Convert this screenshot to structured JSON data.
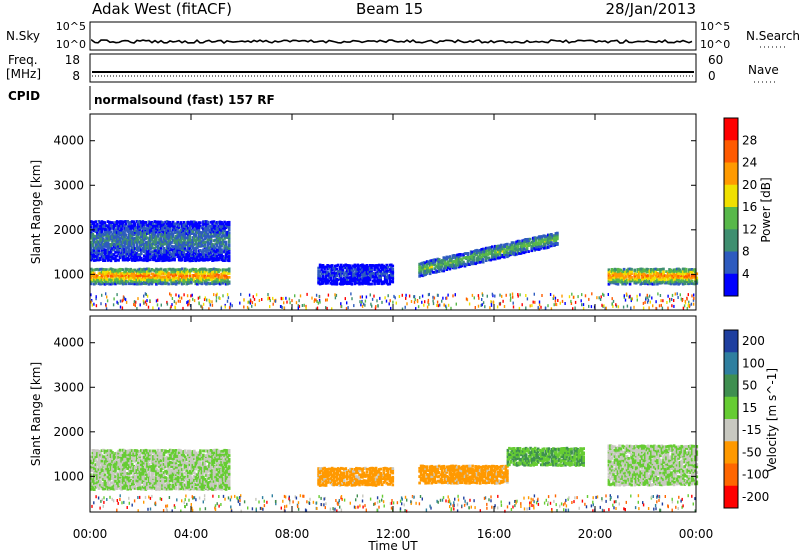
{
  "header": {
    "station": "Adak West (fitACF)",
    "beam": "Beam 15",
    "date": "28/Jan/2013"
  },
  "aux_panel": {
    "left_label": "N.Sky",
    "right_label": "N.Search",
    "left_ticks": [
      "10^5",
      "10^0"
    ],
    "right_ticks": [
      "10^5",
      "10^0"
    ]
  },
  "freq_panel": {
    "left_label_1": "Freq.",
    "left_label_2": "[MHz]",
    "right_label": "Nave",
    "left_ticks": [
      "18",
      "8"
    ],
    "right_ticks": [
      "60",
      "0"
    ]
  },
  "cpid": {
    "label": "CPID",
    "value": "normalsound (fast) 157 RF"
  },
  "colors": {
    "power_scale": [
      "#0000ff",
      "#2e5bbf",
      "#3f8f70",
      "#58b84a",
      "#f0e000",
      "#ff9a00",
      "#ff5a00",
      "#ff0000"
    ],
    "velocity_scale": [
      "#1f3f9f",
      "#2f7f9f",
      "#3f8f50",
      "#66cc33",
      "#c8c8c0",
      "#ff9900",
      "#ff6600",
      "#ff0000"
    ]
  },
  "chart_data": [
    {
      "type": "heatmap",
      "name": "power",
      "ylabel": "Slant Range [km]",
      "yticks": [
        1000,
        2000,
        3000,
        4000
      ],
      "ylim": [
        200,
        4600
      ],
      "colorbar_label": "Power [dB]",
      "colorbar_ticks": [
        4,
        8,
        12,
        16,
        20,
        24,
        28
      ],
      "clim": [
        0,
        32
      ],
      "xlim_hours": [
        0,
        24
      ],
      "features": [
        {
          "label": "00:00-05:30 band",
          "t_start": 0.0,
          "t_end": 5.5,
          "range_center_km": 1000,
          "range_width_km": 350,
          "peak_dB": 28
        },
        {
          "label": "00:00-05:30 upper scatter",
          "t_start": 0.0,
          "t_end": 5.5,
          "range_center_km": 1800,
          "range_width_km": 900,
          "peak_dB": 12
        },
        {
          "label": "09:00-12:00 patch",
          "t_start": 9.0,
          "t_end": 12.0,
          "range_center_km": 1050,
          "range_width_km": 450,
          "peak_dB": 8
        },
        {
          "label": "13:00-18:30 rising band",
          "t_start": 13.0,
          "t_end": 18.5,
          "range_center_km": 1150,
          "range_width_km": 300,
          "peak_dB": 18
        },
        {
          "label": "20:30-24:00 band",
          "t_start": 20.5,
          "t_end": 24.0,
          "range_center_km": 1000,
          "range_width_km": 350,
          "peak_dB": 28
        }
      ]
    },
    {
      "type": "heatmap",
      "name": "velocity",
      "ylabel": "Slant Range [km]",
      "yticks": [
        1000,
        2000,
        3000,
        4000
      ],
      "ylim": [
        200,
        4600
      ],
      "colorbar_label": "Velocity [m s^-1]",
      "colorbar_ticks": [
        200,
        100,
        50,
        15,
        -15,
        -50,
        -100,
        -200
      ],
      "xlabel": "Time UT",
      "xticks": [
        "00:00",
        "04:00",
        "08:00",
        "12:00",
        "16:00",
        "20:00",
        "00:00"
      ],
      "xlim_hours": [
        0,
        24
      ],
      "features": [
        {
          "label": "00:00-05:30 ground scatter",
          "t_start": 0.0,
          "t_end": 5.5,
          "range_center_km": 1200,
          "velocity": 0
        },
        {
          "label": "09:00-12:00 patch",
          "t_start": 9.0,
          "t_end": 12.0,
          "range_center_km": 1050,
          "velocity": -40
        },
        {
          "label": "13:00-16:30 band",
          "t_start": 13.0,
          "t_end": 16.5,
          "range_center_km": 1100,
          "velocity": -40
        },
        {
          "label": "16:30-19:30 band",
          "t_start": 16.5,
          "t_end": 19.5,
          "range_center_km": 1500,
          "velocity": 30
        },
        {
          "label": "20:30-24:00 ground scatter",
          "t_start": 20.5,
          "t_end": 24.0,
          "range_center_km": 1300,
          "velocity": 0
        }
      ]
    }
  ]
}
